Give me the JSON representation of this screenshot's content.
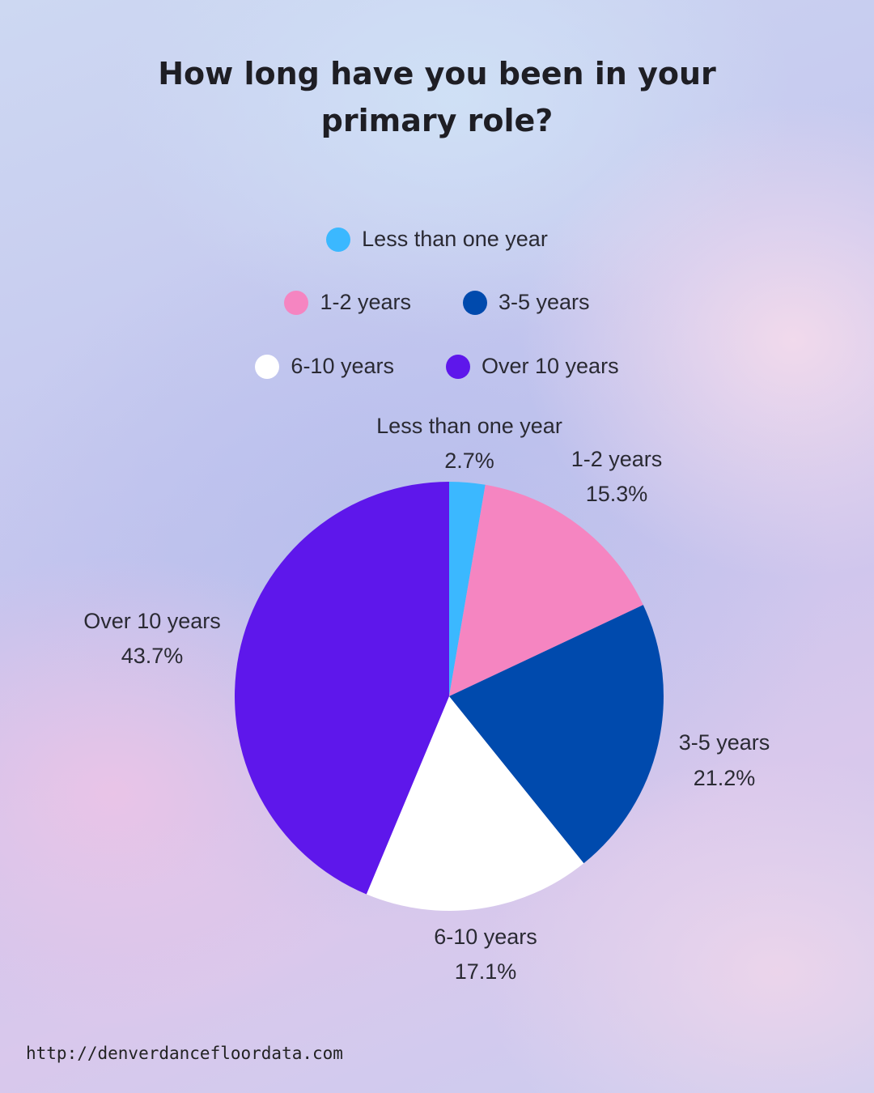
{
  "title": "How long have you been in your primary role?",
  "footer": "http://denverdancefloordata.com",
  "chart_data": {
    "type": "pie",
    "categories": [
      "Less than one year",
      "1-2 years",
      "3-5 years",
      "6-10 years",
      "Over 10 years"
    ],
    "values": [
      2.7,
      15.3,
      21.2,
      17.1,
      43.7
    ],
    "value_labels": [
      "2.7%",
      "15.3%",
      "21.2%",
      "17.1%",
      "43.7%"
    ],
    "colors": [
      "#3bb8ff",
      "#f585c1",
      "#004aad",
      "#ffffff",
      "#5e17eb"
    ],
    "legend": {
      "placement": "top",
      "rows": [
        [
          {
            "label": "Less than one year",
            "color": "#3bb8ff"
          }
        ],
        [
          {
            "label": "1-2 years",
            "color": "#f585c1"
          },
          {
            "label": "3-5 years",
            "color": "#004aad"
          }
        ],
        [
          {
            "label": "6-10 years",
            "color": "#ffffff"
          },
          {
            "label": "Over 10 years",
            "color": "#5e17eb"
          }
        ]
      ]
    }
  }
}
